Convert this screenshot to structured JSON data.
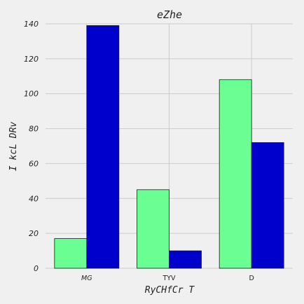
{
  "chart_data": {
    "type": "bar",
    "title": "eZhe",
    "xlabel": "RyCHfCr T",
    "ylabel": "I  kcL  DRv",
    "categories": [
      "MG",
      "TYV",
      "D"
    ],
    "category_italic": [
      true,
      false,
      false
    ],
    "series": [
      {
        "values": [
          17,
          45,
          108
        ],
        "color": "#6bff93"
      },
      {
        "values": [
          139,
          10,
          72
        ],
        "color": "#0000cc"
      }
    ],
    "ylim": [
      0,
      140
    ],
    "yticks": [
      0,
      20,
      40,
      60,
      80,
      100,
      120,
      140
    ],
    "grid": true,
    "legend": "none"
  }
}
